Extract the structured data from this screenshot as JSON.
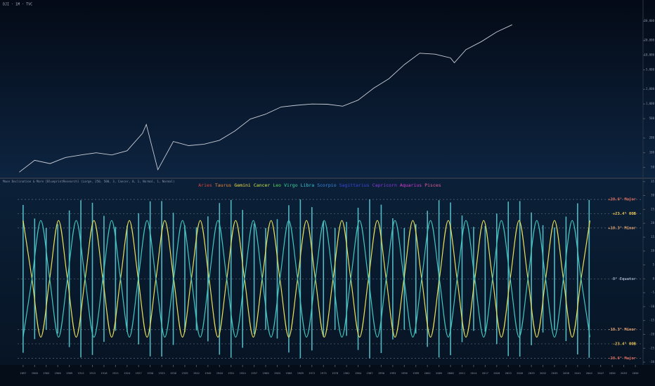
{
  "chart_data": [
    {
      "type": "line",
      "title": "DJI · 1M · TVC",
      "log_scale": true,
      "color": "#c9cdd6",
      "x": [
        1896,
        1900,
        1904,
        1908,
        1912,
        1916,
        1920,
        1924,
        1928,
        1929,
        1932,
        1936,
        1940,
        1944,
        1948,
        1952,
        1956,
        1960,
        1964,
        1968,
        1972,
        1976,
        1980,
        1984,
        1988,
        1992,
        1996,
        2000,
        2004,
        2008,
        2009,
        2012,
        2016,
        2020,
        2024
      ],
      "values": [
        40,
        70,
        60,
        80,
        90,
        100,
        90,
        110,
        250,
        380,
        45,
        170,
        140,
        150,
        180,
        280,
        490,
        620,
        870,
        940,
        1000,
        990,
        900,
        1200,
        2100,
        3300,
        6400,
        11000,
        10500,
        8800,
        7000,
        13000,
        19000,
        30000,
        42000
      ],
      "xlim": [
        1891,
        2058
      ],
      "ylim": [
        31,
        91000
      ],
      "yticks": [
        50,
        100,
        200,
        500,
        {
          "value": 1000,
          "label": "1,000"
        },
        {
          "value": 2000,
          "label": "2,000"
        },
        {
          "value": 5000,
          "label": "5,000"
        },
        {
          "value": 10000,
          "label": "10,000"
        },
        {
          "value": 20000,
          "label": "20,000"
        },
        {
          "value": 50000,
          "label": "50,000"
        }
      ]
    },
    {
      "type": "range",
      "title": "Moon Declination & More [BlueprintResearch] (Large, 250, 500, 3, Cancer, 0, 1, Normal, 1, Normal)",
      "legend": [
        {
          "label": "Aries",
          "color": "#e0443c"
        },
        {
          "label": "Taurus",
          "color": "#f08a3a"
        },
        {
          "label": "Gemini",
          "color": "#f0e04a"
        },
        {
          "label": "Cancer",
          "color": "#c8e84a"
        },
        {
          "label": "Leo",
          "color": "#5ad85a"
        },
        {
          "label": "Virgo",
          "color": "#3ad8a0"
        },
        {
          "label": "Libra",
          "color": "#3ac8d8"
        },
        {
          "label": "Scorpio",
          "color": "#3a8ae8"
        },
        {
          "label": "Sagittarius",
          "color": "#3a4ae0"
        },
        {
          "label": "Capricorn",
          "color": "#8a3ae0"
        },
        {
          "label": "Aquarius",
          "color": "#d83ad8"
        },
        {
          "label": "Pisces",
          "color": "#e85a9a"
        }
      ],
      "bar_color": "#5fd3dc",
      "x": [
        1897,
        1900,
        1903,
        1906,
        1909,
        1912,
        1915,
        1918,
        1921,
        1924,
        1927,
        1930,
        1933,
        1936,
        1939,
        1942,
        1945,
        1948,
        1951,
        1954,
        1957,
        1960,
        1963,
        1966,
        1969,
        1972,
        1975,
        1978,
        1981,
        1984,
        1987,
        1990,
        1993,
        1996,
        1999,
        2002,
        2005,
        2008,
        2011,
        2014,
        2017,
        2020,
        2023,
        2026,
        2029,
        2032,
        2035,
        2038,
        2041,
        2044
      ],
      "max_values": [
        26.6,
        21.7,
        18.3,
        19.7,
        24.6,
        28.3,
        27.4,
        22.7,
        18.7,
        19.1,
        23.6,
        27.9,
        28.0,
        23.8,
        19.2,
        18.6,
        22.5,
        27.3,
        28.4,
        24.8,
        19.9,
        18.3,
        21.5,
        26.5,
        28.6,
        25.8,
        20.8,
        18.3,
        20.5,
        25.6,
        28.6,
        26.7,
        21.8,
        18.3,
        19.7,
        24.5,
        28.3,
        27.5,
        22.8,
        18.7,
        19.0,
        23.5,
        27.8,
        28.0,
        23.9,
        19.3,
        18.5,
        22.4,
        27.2,
        28.4
      ],
      "min_values": [
        -26.6,
        -21.7,
        -18.3,
        -19.7,
        -24.6,
        -28.3,
        -27.4,
        -22.7,
        -18.7,
        -19.1,
        -23.6,
        -27.9,
        -28.0,
        -23.8,
        -19.2,
        -18.6,
        -22.5,
        -27.3,
        -28.4,
        -24.8,
        -19.9,
        -18.3,
        -21.5,
        -26.5,
        -28.6,
        -25.8,
        -20.8,
        -18.3,
        -20.5,
        -25.6,
        -28.6,
        -26.7,
        -21.8,
        -18.3,
        -19.7,
        -24.5,
        -28.3,
        -27.5,
        -22.8,
        -18.7,
        -19.0,
        -23.5,
        -27.8,
        -28.0,
        -23.9,
        -19.3,
        -18.5,
        -22.4,
        -27.2,
        -28.4
      ],
      "cycle_x": [
        1897,
        1899.3,
        1901.6,
        1903.9,
        1906.2,
        1908.5,
        1910.8,
        1913.1,
        1915.4,
        1917.7,
        1920,
        1922.3,
        1924.6,
        1926.9,
        1929.2,
        1931.5,
        1933.8,
        1936.1,
        1938.4,
        1940.7,
        1943,
        1945.3,
        1947.6,
        1949.9,
        1952.2,
        1954.5,
        1956.8,
        1959.1,
        1961.4,
        1963.7,
        1966,
        1968.3,
        1970.6,
        1972.9,
        1975.2,
        1977.5,
        1979.8,
        1982.1,
        1984.4,
        1986.7,
        1989,
        1991.3,
        1993.6,
        1995.9,
        1998.2,
        2000.5,
        2002.8,
        2005.1,
        2007.4,
        2009.7,
        2012,
        2014.3,
        2016.6,
        2018.9,
        2021.2,
        2023.5,
        2025.8,
        2028.1,
        2030.4,
        2032.7,
        2035,
        2037.3,
        2039.6,
        2041.9,
        2044.2
      ],
      "cycles": [
        {
          "color": "#e8e05a",
          "values": [
            21,
            0,
            -21,
            0,
            21,
            0,
            -21,
            0,
            21,
            0,
            -21,
            0,
            21,
            0,
            -21,
            0,
            21,
            0,
            -21,
            0,
            21,
            0,
            -21,
            0,
            21,
            0,
            -21,
            0,
            21,
            0,
            -21,
            0,
            21,
            0,
            -21,
            0,
            21,
            0,
            -21,
            0,
            21,
            0,
            -21,
            0,
            21,
            0,
            -21,
            0,
            21,
            0,
            -21,
            0,
            21,
            0,
            -21,
            0,
            21,
            0,
            -21,
            0,
            21,
            0,
            -21,
            0,
            21
          ]
        },
        {
          "color": "#3fc8c0",
          "values": [
            -21,
            0,
            21,
            0,
            -21,
            0,
            21,
            0,
            -21,
            0,
            21,
            0,
            -21,
            0,
            21,
            0,
            -21,
            0,
            21,
            0,
            -21,
            0,
            21,
            0,
            -21,
            0,
            21,
            0,
            -21,
            0,
            21,
            0,
            -21,
            0,
            21,
            0,
            -21,
            0,
            21,
            0,
            -21,
            0,
            21,
            0,
            -21,
            0,
            21,
            0,
            -21,
            0,
            21,
            0,
            -21,
            0,
            21,
            0,
            -21,
            0,
            21,
            0,
            -21,
            0,
            21,
            0,
            -21
          ]
        }
      ],
      "levels": [
        {
          "value": 28.6,
          "label": "+28.6° Major",
          "color": "#e8705e"
        },
        {
          "value": 23.4,
          "label": "+23.4° OOB",
          "color": "#f0c850"
        },
        {
          "value": 18.3,
          "label": "+18.3° Minor",
          "color": "#f0a870"
        },
        {
          "value": 0,
          "label": "0° Equator",
          "color": "#9aa6ba"
        },
        {
          "value": -18.3,
          "label": "-18.3° Minor",
          "color": "#f0a870"
        },
        {
          "value": -23.4,
          "label": "-23.4° OOB",
          "color": "#f0c850"
        },
        {
          "value": -28.6,
          "label": "-28.6° Major",
          "color": "#e8705e"
        }
      ],
      "xlim": [
        1891,
        2058
      ],
      "ylim": [
        -31,
        35.7
      ],
      "yticks": [
        -30,
        -25,
        -20,
        -15,
        -10,
        -5,
        0,
        5,
        10,
        15,
        20,
        25,
        30,
        35
      ],
      "xticks": [
        1897,
        1900,
        1903,
        1906,
        1909,
        1912,
        1915,
        1918,
        1921,
        1924,
        1927,
        1930,
        1933,
        1936,
        1939,
        1942,
        1945,
        1948,
        1951,
        1954,
        1957,
        1960,
        1963,
        1966,
        1969,
        1972,
        1975,
        1978,
        1981,
        1984,
        1987,
        1990,
        1993,
        1996,
        1999,
        2002,
        2005,
        2008,
        2011,
        2014,
        2017,
        2020,
        2023,
        2026,
        2029,
        2032,
        2035,
        2038,
        2041,
        2044,
        2047,
        2050,
        2053,
        2056
      ]
    }
  ]
}
